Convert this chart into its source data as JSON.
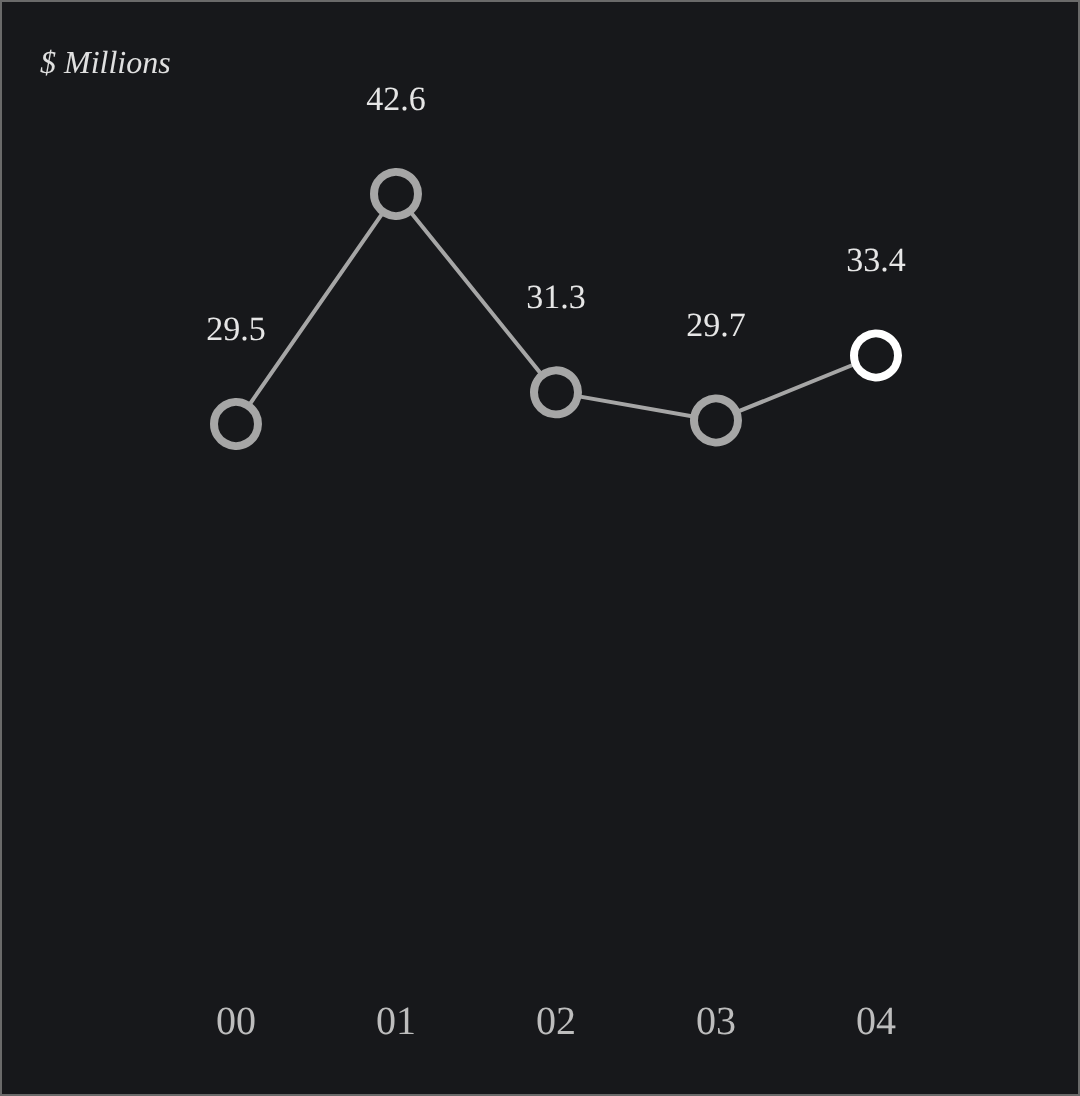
{
  "chart_data": {
    "type": "line",
    "ylabel": "$ Millions",
    "categories": [
      "00",
      "01",
      "02",
      "03",
      "04"
    ],
    "series": [
      {
        "color": "#a6a6a6",
        "colors": [
          "#a6a6a6",
          "#a6a6a6",
          "#a6a6a6",
          "#a6a6a6",
          "#ffffff"
        ],
        "values": [
          29.5,
          42.6,
          31.3,
          29.7,
          33.4
        ]
      }
    ],
    "data_labels": true,
    "marker": "circle",
    "line_style": "solid"
  }
}
